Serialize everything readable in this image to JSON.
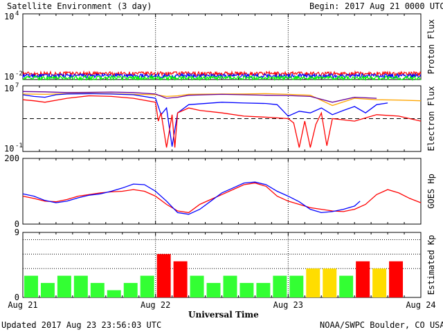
{
  "header": {
    "title": "Satellite Environment (3 day)",
    "begin_label": "Begin:",
    "begin_value": "2017 Aug 21 0000 UTC"
  },
  "footer": {
    "updated": "Updated 2017 Aug 23 23:56:03 UTC",
    "credit": "NOAA/SWPC Boulder, CO USA",
    "xlabel": "Universal Time"
  },
  "chart_data": {
    "type": "line",
    "x_tick_labels": [
      "Aug 21",
      "Aug 22",
      "Aug 23",
      "Aug 24"
    ],
    "panels": [
      {
        "name": "proton",
        "ylabel": "Proton Flux",
        "y_scale": "log",
        "ylim": [
          0.01,
          10000
        ],
        "y_tick_labels": [
          {
            "base": "10",
            "exp": "4"
          },
          {
            "base": "10",
            "exp": "-2"
          }
        ],
        "threshold": 10,
        "series": [
          {
            "color": "#ff0000",
            "level": 0.035
          },
          {
            "color": "#0000ff",
            "level": 0.022
          },
          {
            "color": "#00ff00",
            "level": 0.014
          }
        ]
      },
      {
        "name": "electron",
        "ylabel": "Electron Flux",
        "y_scale": "log",
        "ylim": [
          0.1,
          10000000
        ],
        "y_tick_labels": [
          {
            "base": "10",
            "exp": "7"
          },
          {
            "base": "10",
            "exp": "-1"
          }
        ],
        "threshold": 1000,
        "series": [
          {
            "color": "#ffa500",
            "x": [
              0,
              4,
              8,
              12,
              16,
              20,
              24,
              26,
              28,
              30,
              36,
              40,
              44,
              48,
              52,
              56,
              60,
              64,
              68,
              72
            ],
            "y": [
              1000000,
              900000,
              1100000,
              1200000,
              1100000,
              900000,
              800000,
              500000,
              600000,
              900000,
              1000000,
              1000000,
              1100000,
              900000,
              700000,
              40000,
              300000,
              200000,
              180000,
              150000
            ]
          },
          {
            "color": "#660099",
            "x": [
              0,
              4,
              8,
              12,
              16,
              20,
              24,
              26,
              28,
              30,
              36,
              40,
              44,
              48,
              52,
              56,
              60,
              64,
              68,
              72
            ],
            "y": [
              2000000,
              1800000,
              1500000,
              1600000,
              1700000,
              1500000,
              1000000,
              300000,
              400000,
              700000,
              900000,
              800000,
              700000,
              650000,
              500000,
              100000,
              400000,
              300000,
              null,
              null
            ]
          },
          {
            "color": "#0000ff",
            "x": [
              0,
              2,
              4,
              6,
              8,
              12,
              16,
              20,
              24,
              25,
              26,
              27,
              28,
              30,
              36,
              40,
              44,
              46,
              48,
              50,
              52,
              54,
              56,
              58,
              60,
              62,
              64,
              66
            ],
            "y": [
              800000,
              500000,
              400000,
              800000,
              1000000,
              1100000,
              1000000,
              800000,
              300000,
              3000,
              20000,
              0.4,
              5000,
              50000,
              100000,
              80000,
              70000,
              50000,
              2000,
              8000,
              5000,
              20000,
              3000,
              10000,
              30000,
              5000,
              50000,
              80000
            ]
          },
          {
            "color": "#ff0000",
            "x": [
              0,
              2,
              4,
              8,
              12,
              16,
              20,
              24,
              24.5,
              25,
              26,
              27,
              27.5,
              28,
              30,
              32,
              36,
              40,
              44,
              48,
              49,
              50,
              51,
              52,
              53,
              54,
              55,
              56,
              60,
              64,
              68,
              72
            ],
            "y": [
              200000,
              150000,
              100000,
              300000,
              600000,
              500000,
              300000,
              100000,
              500,
              5000,
              0.3,
              3000,
              0.3,
              5000,
              20000,
              10000,
              5000,
              2000,
              1500,
              1000,
              300,
              0.3,
              500,
              0.3,
              200,
              5000,
              0.5,
              1000,
              500,
              3000,
              2000,
              500
            ]
          }
        ]
      },
      {
        "name": "goes_hp",
        "ylabel": "GOES Hp",
        "y_scale": "linear",
        "ylim": [
          0,
          200
        ],
        "y_ticks": [
          0,
          200
        ],
        "series": [
          {
            "color": "#ff0000",
            "x": [
              0,
              2,
              4,
              6,
              8,
              10,
              12,
              14,
              16,
              18,
              20,
              22,
              24,
              26,
              28,
              30,
              32,
              34,
              36,
              38,
              40,
              42,
              44,
              46,
              48,
              50,
              52,
              54,
              56,
              58,
              60,
              62,
              64,
              66,
              68,
              70,
              72
            ],
            "y": [
              85,
              78,
              70,
              68,
              75,
              85,
              90,
              95,
              98,
              100,
              105,
              100,
              85,
              60,
              40,
              35,
              60,
              75,
              90,
              105,
              120,
              125,
              115,
              85,
              70,
              60,
              50,
              45,
              40,
              38,
              45,
              60,
              90,
              105,
              95,
              78,
              65
            ]
          },
          {
            "color": "#0000ff",
            "x": [
              0,
              2,
              4,
              6,
              8,
              10,
              12,
              14,
              16,
              18,
              20,
              22,
              24,
              26,
              28,
              30,
              32,
              34,
              36,
              38,
              40,
              42,
              44,
              46,
              48,
              50,
              52,
              54,
              56,
              58,
              60,
              61
            ],
            "y": [
              92,
              85,
              72,
              65,
              70,
              80,
              88,
              92,
              100,
              110,
              122,
              120,
              100,
              70,
              35,
              30,
              45,
              70,
              95,
              110,
              125,
              128,
              120,
              100,
              85,
              68,
              45,
              35,
              38,
              45,
              55,
              70
            ]
          }
        ]
      },
      {
        "name": "kp",
        "ylabel": "Estimated Kp",
        "y_scale": "linear",
        "ylim": [
          0,
          9
        ],
        "y_ticks": [
          0,
          9
        ],
        "dotted_levels": [
          4,
          6,
          8
        ],
        "type": "bar",
        "bar_values": [
          3,
          2,
          3,
          3,
          2,
          1,
          2,
          3,
          6,
          5,
          3,
          2,
          3,
          2,
          2,
          3,
          3,
          4,
          4,
          3,
          5,
          4,
          5,
          null
        ],
        "bar_colors": {
          "quiet": "#33ff33",
          "active": "#ffdd00",
          "storm": "#ff0000"
        }
      }
    ]
  }
}
